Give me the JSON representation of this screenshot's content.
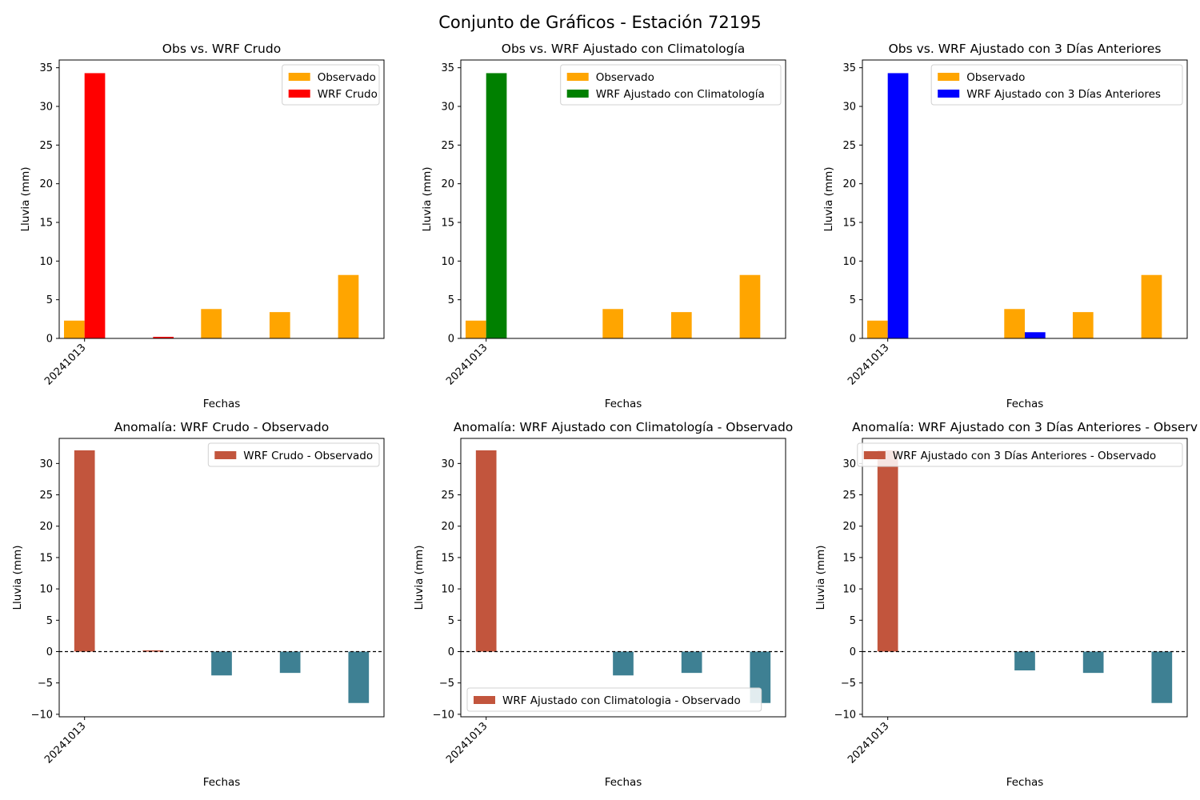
{
  "figure": {
    "title": "Conjunto de Gráficos - Estación 72195"
  },
  "colors": {
    "observado": "#ffa500",
    "wrf_crudo": "#ff0000",
    "wrf_clim": "#008000",
    "wrf_3dias": "#0000ff",
    "anomaly_positive": "#c2553d",
    "anomaly_negative": "#3e8093",
    "zero_line": "#000000"
  },
  "chart_data": [
    {
      "type": "bar",
      "title": "Obs vs. WRF Crudo",
      "xlabel": "Fechas",
      "ylabel": "Lluvia (mm)",
      "x": [
        0,
        1,
        2,
        3,
        4
      ],
      "xticks": [
        0
      ],
      "xticklabels": [
        "20241013"
      ],
      "ylim": [
        0,
        36
      ],
      "yticks": [
        0,
        5,
        10,
        15,
        20,
        25,
        30,
        35
      ],
      "legend_position": "upper right",
      "series": [
        {
          "name": "Observado",
          "color_key": "observado",
          "values": [
            2.3,
            0,
            3.8,
            3.4,
            8.2
          ]
        },
        {
          "name": "WRF Crudo",
          "color_key": "wrf_crudo",
          "values": [
            34.3,
            0.2,
            0,
            0,
            0
          ]
        }
      ]
    },
    {
      "type": "bar",
      "title": "Obs vs. WRF Ajustado con Climatología",
      "xlabel": "Fechas",
      "ylabel": "Lluvia (mm)",
      "x": [
        0,
        1,
        2,
        3,
        4
      ],
      "xticks": [
        0
      ],
      "xticklabels": [
        "20241013"
      ],
      "ylim": [
        0,
        36
      ],
      "yticks": [
        0,
        5,
        10,
        15,
        20,
        25,
        30,
        35
      ],
      "legend_position": "upper right",
      "series": [
        {
          "name": "Observado",
          "color_key": "observado",
          "values": [
            2.3,
            0,
            3.8,
            3.4,
            8.2
          ]
        },
        {
          "name": "WRF Ajustado con Climatología",
          "color_key": "wrf_clim",
          "values": [
            34.3,
            0,
            0,
            0,
            0
          ]
        }
      ]
    },
    {
      "type": "bar",
      "title": "Obs vs. WRF Ajustado con 3 Días Anteriores",
      "xlabel": "Fechas",
      "ylabel": "Lluvia (mm)",
      "x": [
        0,
        1,
        2,
        3,
        4
      ],
      "xticks": [
        0
      ],
      "xticklabels": [
        "20241013"
      ],
      "ylim": [
        0,
        36
      ],
      "yticks": [
        0,
        5,
        10,
        15,
        20,
        25,
        30,
        35
      ],
      "legend_position": "upper right",
      "series": [
        {
          "name": "Observado",
          "color_key": "observado",
          "values": [
            2.3,
            0,
            3.8,
            3.4,
            8.2
          ]
        },
        {
          "name": "WRF Ajustado con 3 Días Anteriores",
          "color_key": "wrf_3dias",
          "values": [
            34.3,
            0,
            0.8,
            0,
            0
          ]
        }
      ]
    },
    {
      "type": "bar",
      "title": "Anomalía: WRF Crudo - Observado",
      "xlabel": "Fechas",
      "ylabel": "Lluvia (mm)",
      "x": [
        0,
        1,
        2,
        3,
        4
      ],
      "xticks": [
        0
      ],
      "xticklabels": [
        "20241013"
      ],
      "ylim": [
        -10.4,
        34
      ],
      "yticks": [
        -10,
        -5,
        0,
        5,
        10,
        15,
        20,
        25,
        30
      ],
      "zero_line": true,
      "legend_position": "upper right",
      "series": [
        {
          "name": "WRF Crudo - Observado",
          "values": [
            32.1,
            0.2,
            -3.8,
            -3.4,
            -8.2
          ]
        }
      ]
    },
    {
      "type": "bar",
      "title": "Anomalía: WRF Ajustado con Climatología - Observado",
      "xlabel": "Fechas",
      "ylabel": "Lluvia (mm)",
      "x": [
        0,
        1,
        2,
        3,
        4
      ],
      "xticks": [
        0
      ],
      "xticklabels": [
        "20241013"
      ],
      "ylim": [
        -10.4,
        34
      ],
      "yticks": [
        -10,
        -5,
        0,
        5,
        10,
        15,
        20,
        25,
        30
      ],
      "zero_line": true,
      "legend_position": "lower left",
      "series": [
        {
          "name": "WRF Ajustado con Climatologia - Observado",
          "values": [
            32.1,
            0,
            -3.8,
            -3.4,
            -8.2
          ]
        }
      ]
    },
    {
      "type": "bar",
      "title": "Anomalía: WRF Ajustado con 3 Días Anteriores - Observ",
      "xlabel": "Fechas",
      "ylabel": "Lluvia (mm)",
      "x": [
        0,
        1,
        2,
        3,
        4
      ],
      "xticks": [
        0
      ],
      "xticklabels": [
        "20241013"
      ],
      "ylim": [
        -10.4,
        34
      ],
      "yticks": [
        -10,
        -5,
        0,
        5,
        10,
        15,
        20,
        25,
        30
      ],
      "zero_line": true,
      "legend_position": "upper right",
      "series": [
        {
          "name": "WRF Ajustado con 3 Días Anteriores - Observado",
          "values": [
            32.1,
            0,
            -3.0,
            -3.4,
            -8.2
          ]
        }
      ]
    }
  ]
}
